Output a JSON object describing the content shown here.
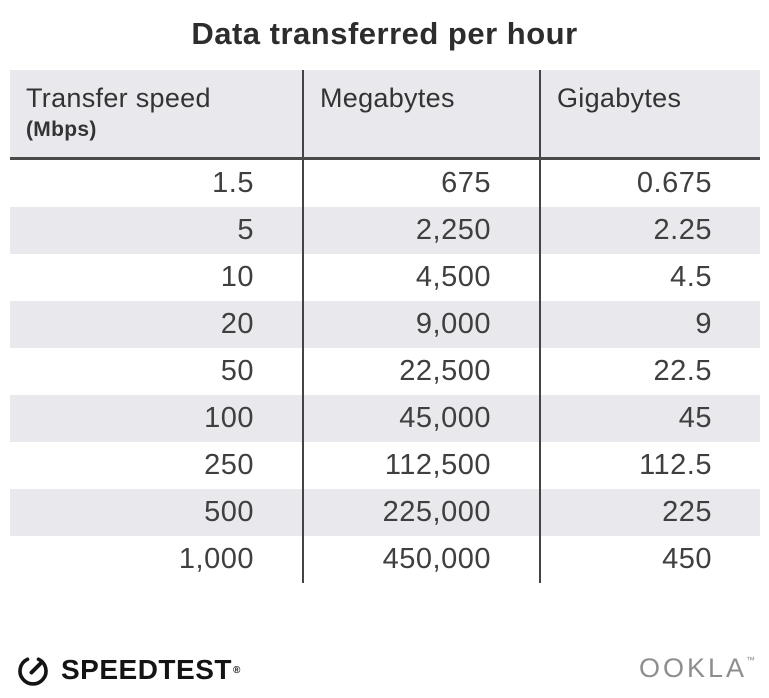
{
  "title": "Data transferred per hour",
  "table": {
    "columns": [
      {
        "label": "Transfer speed",
        "sublabel": "(Mbps)"
      },
      {
        "label": "Megabytes"
      },
      {
        "label": "Gigabytes"
      }
    ],
    "rows": [
      [
        "1.5",
        "675",
        "0.675"
      ],
      [
        "5",
        "2,250",
        "2.25"
      ],
      [
        "10",
        "4,500",
        "4.5"
      ],
      [
        "20",
        "9,000",
        "9"
      ],
      [
        "50",
        "22,500",
        "22.5"
      ],
      [
        "100",
        "45,000",
        "45"
      ],
      [
        "250",
        "112,500",
        "112.5"
      ],
      [
        "500",
        "225,000",
        "225"
      ],
      [
        "1,000",
        "450,000",
        "450"
      ]
    ]
  },
  "chart_data": {
    "type": "table",
    "title": "Data transferred per hour",
    "columns": [
      "Transfer speed (Mbps)",
      "Megabytes",
      "Gigabytes"
    ],
    "rows": [
      [
        1.5,
        675,
        0.675
      ],
      [
        5,
        2250,
        2.25
      ],
      [
        10,
        4500,
        4.5
      ],
      [
        20,
        9000,
        9
      ],
      [
        50,
        22500,
        22.5
      ],
      [
        100,
        45000,
        45
      ],
      [
        250,
        112500,
        112.5
      ],
      [
        500,
        225000,
        225
      ],
      [
        1000,
        450000,
        450
      ]
    ],
    "layout_hints": {
      "striped_rows": "even rows shaded",
      "number_alignment": "right",
      "column_dividers": true
    }
  },
  "footer": {
    "speedtest_wordmark": "SPEEDTEST",
    "speedtest_mark": "®",
    "ookla_wordmark": "OOKLA",
    "ookla_mark": "™"
  },
  "icons": {
    "speedtest_gauge": "gauge-circle-with-needle"
  },
  "colors": {
    "stripe": "#e9e8ec",
    "line": "#444444",
    "line-dark": "#4a4a4a",
    "text": "#3f3f3f",
    "title": "#2d2d2d",
    "logo-black": "#141414",
    "ookla-grey": "#8e8e8e"
  }
}
